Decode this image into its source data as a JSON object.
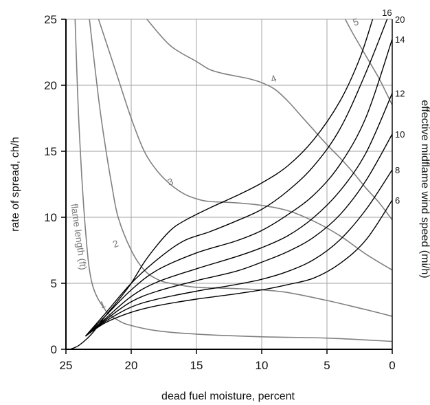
{
  "chart_data": {
    "type": "line",
    "xlabel": "dead fuel moisture, percent",
    "ylabel": "rate of spread, ch/h",
    "y2label": "effective midflame wind speed (mi/h)",
    "x_reversed": true,
    "xlim": [
      0,
      25
    ],
    "ylim": [
      0,
      25
    ],
    "xticks": [
      "25",
      "20",
      "15",
      "10",
      "5",
      "0"
    ],
    "xtick_values": [
      25,
      20,
      15,
      10,
      5,
      0
    ],
    "yticks": [
      "0",
      "5",
      "10",
      "15",
      "20",
      "25"
    ],
    "ytick_values": [
      0,
      5,
      10,
      15,
      20,
      25
    ],
    "grid": true,
    "colors": {
      "wind": "#000000",
      "flame": "#808080",
      "grid": "#b3b3b3",
      "axis": "#000000"
    },
    "flame_length_label": "flame length (ft)",
    "flame_length_series": [
      {
        "name": "1",
        "x": [
          24.3,
          24,
          23.5,
          23,
          22,
          21,
          20,
          18,
          15,
          10,
          5,
          0
        ],
        "y": [
          25,
          17,
          9,
          5,
          3,
          2.2,
          1.8,
          1.4,
          1.15,
          0.95,
          0.85,
          0.6
        ]
      },
      {
        "name": "2",
        "x": [
          23.2,
          22.5,
          22,
          21.5,
          21,
          20,
          19,
          18,
          17,
          15,
          12,
          10,
          8,
          5,
          2,
          0
        ],
        "y": [
          25,
          19,
          15.5,
          12.5,
          10,
          7.5,
          6,
          5.3,
          5,
          4.7,
          4.6,
          4.5,
          4.3,
          3.7,
          3,
          2.5
        ]
      },
      {
        "name": "3",
        "x": [
          22.5,
          21,
          20,
          19,
          18,
          17,
          16,
          15,
          14,
          12,
          10,
          8,
          6,
          4,
          2,
          0
        ],
        "y": [
          25,
          20.5,
          17.5,
          15,
          13.5,
          12.5,
          11.8,
          11.4,
          11.2,
          11.1,
          10.9,
          10.5,
          9.7,
          8.6,
          7.2,
          6
        ]
      },
      {
        "name": "4",
        "x": [
          18.8,
          17,
          15,
          14,
          13,
          12,
          11,
          10,
          9,
          8,
          7,
          6,
          5,
          4,
          3,
          2,
          1,
          0
        ],
        "y": [
          25,
          23,
          21.8,
          21.2,
          20.9,
          20.7,
          20.5,
          20.2,
          19.7,
          18.8,
          17.7,
          16.6,
          15.5,
          14.5,
          13.4,
          12.2,
          11.1,
          9.8
        ]
      },
      {
        "name": "5",
        "x": [
          3.6,
          3,
          2,
          1,
          0
        ],
        "y": [
          25,
          23.9,
          22.2,
          20.5,
          18.5
        ]
      }
    ],
    "wind_series": [
      {
        "name": "6",
        "x": [
          23.5,
          22,
          20,
          18,
          15,
          12,
          10,
          8,
          6,
          4,
          2,
          0
        ],
        "y": [
          1,
          2,
          2.8,
          3.3,
          3.8,
          4.2,
          4.5,
          4.9,
          5.4,
          6.5,
          8.3,
          11.3
        ]
      },
      {
        "name": "8",
        "x": [
          23.5,
          22,
          20,
          18,
          15,
          12,
          10,
          8,
          6,
          4,
          2,
          0
        ],
        "y": [
          1,
          2.1,
          3.2,
          3.8,
          4.4,
          4.9,
          5.3,
          5.9,
          6.8,
          8.3,
          10.6,
          13.6
        ]
      },
      {
        "name": "10",
        "x": [
          23.5,
          22,
          20,
          18,
          15,
          12,
          10,
          8,
          6,
          4,
          2,
          0
        ],
        "y": [
          1,
          2.2,
          3.6,
          4.4,
          5.2,
          5.9,
          6.6,
          7.4,
          8.5,
          10.2,
          12.8,
          16.3
        ]
      },
      {
        "name": "12",
        "x": [
          23.5,
          22,
          20,
          18,
          15,
          12,
          10,
          8,
          6,
          4,
          2,
          0
        ],
        "y": [
          1,
          2.3,
          4,
          5.1,
          6.1,
          7,
          7.7,
          8.6,
          10,
          12,
          14.9,
          19.4
        ]
      },
      {
        "name": "14",
        "x": [
          23.5,
          22,
          20,
          18,
          15,
          12,
          10,
          8,
          6,
          4,
          2,
          0
        ],
        "y": [
          1,
          2.5,
          4.5,
          6,
          7.3,
          8.2,
          9,
          10.2,
          11.7,
          14,
          17.6,
          23.5
        ]
      },
      {
        "name": "16",
        "x": [
          23.5,
          22,
          20,
          18,
          16,
          14,
          12,
          10,
          8,
          6,
          4,
          2,
          0
        ],
        "y": [
          1,
          2.7,
          5,
          6.8,
          8.2,
          8.9,
          9.7,
          10.6,
          12,
          13.9,
          16.7,
          21,
          26
        ]
      },
      {
        "name": "20",
        "x": [
          24.7,
          24,
          23,
          22,
          21,
          20,
          19,
          18,
          17,
          16,
          14,
          12,
          10,
          8,
          6,
          4,
          2.5,
          1.5
        ],
        "y": [
          0,
          0.3,
          1.2,
          2.5,
          3.7,
          5,
          6.6,
          7.9,
          9,
          9.7,
          10.7,
          11.6,
          12.6,
          13.9,
          15.9,
          18.8,
          22,
          25
        ]
      }
    ],
    "flame_label_positions": [
      {
        "text": "1",
        "x": 22.2,
        "y": 3.4
      },
      {
        "text": "2",
        "x": 21.2,
        "y": 8.0
      },
      {
        "text": "3",
        "x": 17.0,
        "y": 12.7
      },
      {
        "text": "4",
        "x": 9.1,
        "y": 20.5
      },
      {
        "text": "5",
        "x": 2.8,
        "y": 24.8
      }
    ]
  }
}
